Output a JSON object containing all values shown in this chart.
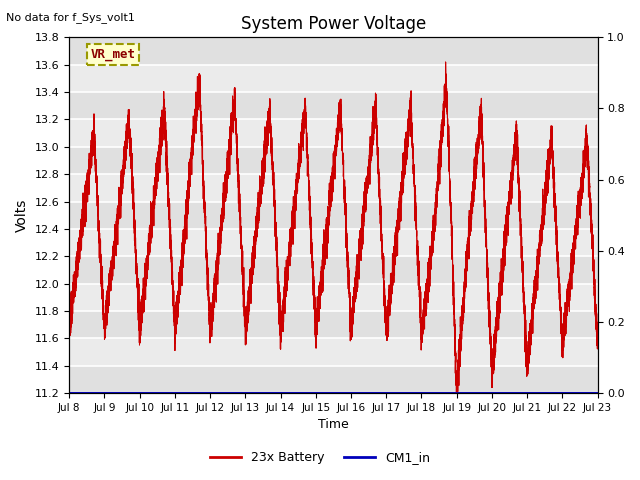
{
  "title": "System Power Voltage",
  "top_left_text": "No data for f_Sys_volt1",
  "ylabel_left": "Volts",
  "xlabel": "Time",
  "ylim_left": [
    11.2,
    13.8
  ],
  "ylim_right": [
    0.0,
    1.0
  ],
  "yticks_left": [
    11.2,
    11.4,
    11.6,
    11.8,
    12.0,
    12.2,
    12.4,
    12.6,
    12.8,
    13.0,
    13.2,
    13.4,
    13.6,
    13.8
  ],
  "yticks_right": [
    0.0,
    0.2,
    0.4,
    0.6,
    0.8,
    1.0
  ],
  "xtick_labels": [
    "Jul 8",
    "Jul 9",
    "Jul 10",
    "Jul 11",
    "Jul 12",
    "Jul 13",
    "Jul 14",
    "Jul 15",
    "Jul 16",
    "Jul 17",
    "Jul 18",
    "Jul 19",
    "Jul 20",
    "Jul 21",
    "Jul 22",
    "Jul 23"
  ],
  "legend_label_vr": "VR_met",
  "legend_label_red": "23x Battery",
  "legend_label_blue": "CM1_in",
  "facecolor": "#e8e8e8",
  "line_color_red": "#cc0000",
  "line_color_blue": "#0000bb",
  "cm1_value": 11.2,
  "figsize": [
    6.4,
    4.8
  ],
  "dpi": 100
}
